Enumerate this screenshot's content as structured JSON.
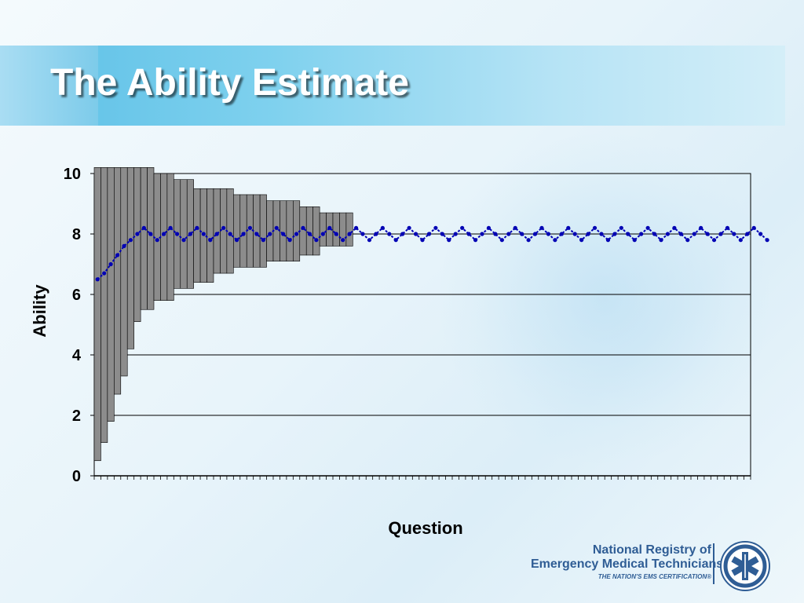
{
  "slide": {
    "title": "The Ability Estimate"
  },
  "colors": {
    "title_band": "#6fcbed",
    "bar_fill": "#8c8c8c",
    "line_color": "#0000b4",
    "logo_blue": "#2f5d95"
  },
  "logo": {
    "line1": "National Registry of",
    "line2": "Emergency Medical Technicians®",
    "line3": "THE NATION'S EMS CERTIFICATION®"
  },
  "chart_data": {
    "type": "bar",
    "xlabel": "Question",
    "ylabel": "Ability",
    "ylim": [
      0,
      10
    ],
    "yticks": [
      0,
      2,
      4,
      6,
      8,
      10
    ],
    "x_count": 99,
    "grid": "horizontal",
    "legend": "none",
    "series": [
      {
        "kind": "floating-bar",
        "lower": [
          0.5,
          1.1,
          1.8,
          2.7,
          3.3,
          4.2,
          5.1,
          5.5,
          5.5,
          5.8,
          5.8,
          5.8,
          6.2,
          6.2,
          6.2,
          6.4,
          6.4,
          6.4,
          6.7,
          6.7,
          6.7,
          6.9,
          6.9,
          6.9,
          6.9,
          6.9,
          7.1,
          7.1,
          7.1,
          7.1,
          7.1,
          7.3,
          7.3,
          7.3,
          7.6,
          7.6,
          7.6,
          7.6,
          7.6
        ],
        "upper": [
          10.2,
          10.2,
          10.2,
          10.2,
          10.2,
          10.2,
          10.2,
          10.2,
          10.2,
          10.0,
          10.0,
          10.0,
          9.8,
          9.8,
          9.8,
          9.5,
          9.5,
          9.5,
          9.5,
          9.5,
          9.5,
          9.3,
          9.3,
          9.3,
          9.3,
          9.3,
          9.1,
          9.1,
          9.1,
          9.1,
          9.1,
          8.9,
          8.9,
          8.9,
          8.7,
          8.7,
          8.7,
          8.7,
          8.7
        ]
      },
      {
        "kind": "line",
        "values": [
          6.5,
          6.7,
          7.0,
          7.3,
          7.6,
          7.8,
          8.0,
          8.2,
          8.0,
          7.8,
          8.0,
          8.2,
          8.0,
          7.8,
          8.0,
          8.2,
          8.0,
          7.8,
          8.0,
          8.2,
          8.0,
          7.8,
          8.0,
          8.2,
          8.0,
          7.8,
          8.0,
          8.2,
          8.0,
          7.8,
          8.0,
          8.2,
          8.0,
          7.8,
          8.0,
          8.2,
          8.0,
          7.8,
          8.0,
          8.2,
          8.0,
          7.8,
          8.0,
          8.2,
          8.0,
          7.8,
          8.0,
          8.2,
          8.0,
          7.8,
          8.0,
          8.2,
          8.0,
          7.8,
          8.0,
          8.2,
          8.0,
          7.8,
          8.0,
          8.2,
          8.0,
          7.8,
          8.0,
          8.2,
          8.0,
          7.8,
          8.0,
          8.2,
          8.0,
          7.8,
          8.0,
          8.2,
          8.0,
          7.8,
          8.0,
          8.2,
          8.0,
          7.8,
          8.0,
          8.2,
          8.0,
          7.8,
          8.0,
          8.2,
          8.0,
          7.8,
          8.0,
          8.2,
          8.0,
          7.8,
          8.0,
          8.2,
          8.0,
          7.8,
          8.0,
          8.2,
          8.0,
          7.8,
          8.0,
          8.2,
          8.0,
          7.8
        ]
      }
    ]
  }
}
